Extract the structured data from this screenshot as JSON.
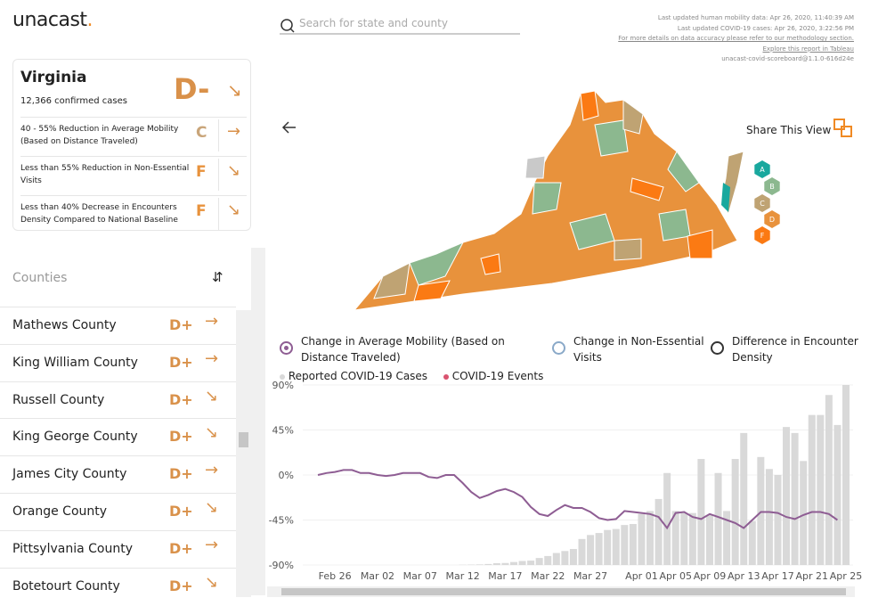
{
  "header": {
    "logo": "unacast",
    "logo_dot": ".",
    "search_placeholder": "Search for state and county",
    "update_lines": [
      "Last updated human mobility data: Apr 26, 2020, 11:40:39 AM",
      "Last updated COVID-19 cases: Apr 26, 2020, 3:22:56 PM",
      "For more details on data accuracy please refer to our methodology section.",
      "Explore this report in Tableau",
      "unacast-covid-scoreboard@1.1.0-616d24e"
    ]
  },
  "state_card": {
    "name": "Virginia",
    "cases": "12,366 confirmed cases",
    "grade": "D-",
    "trend": "↘",
    "metrics": [
      {
        "text": "40 - 55% Reduction in Average Mobility (Based on Distance Traveled)",
        "grade": "C",
        "trend": "→"
      },
      {
        "text": "Less than 55% Reduction in Non-Essential Visits",
        "grade": "F",
        "trend": "↘"
      },
      {
        "text": "Less than 40% Decrease in Encounters Density Compared to National Baseline",
        "grade": "F",
        "trend": "↘"
      }
    ]
  },
  "counties": {
    "title": "Counties",
    "items": [
      {
        "name": "Mathews County",
        "grade": "D+",
        "trend": "→"
      },
      {
        "name": "King William County",
        "grade": "D+",
        "trend": "→"
      },
      {
        "name": "Russell County",
        "grade": "D+",
        "trend": "↘"
      },
      {
        "name": "King George County",
        "grade": "D+",
        "trend": "↘"
      },
      {
        "name": "James City County",
        "grade": "D+",
        "trend": "→"
      },
      {
        "name": "Orange County",
        "grade": "D+",
        "trend": "↘"
      },
      {
        "name": "Pittsylvania County",
        "grade": "D+",
        "trend": "→"
      },
      {
        "name": "Botetourt County",
        "grade": "D+",
        "trend": "↘"
      }
    ]
  },
  "map": {
    "share": "Share This View",
    "grades": [
      {
        "label": "A",
        "color": "#19a89e"
      },
      {
        "label": "B",
        "color": "#8cb88f"
      },
      {
        "label": "C",
        "color": "#bfa373"
      },
      {
        "label": "D",
        "color": "#e8923c"
      },
      {
        "label": "F",
        "color": "#fb7a13"
      }
    ]
  },
  "metric_options": [
    {
      "label": "Change in Average Mobility (Based on Distance Traveled)",
      "selected": true
    },
    {
      "label": "Change in Non-Essential Visits",
      "selected": false
    },
    {
      "label": "Difference in Encounter Density",
      "selected": false
    }
  ],
  "chart_data": {
    "type": "bar-line",
    "categories": [
      null,
      null,
      "Feb 26",
      null,
      null,
      null,
      null,
      "Mar 02",
      null,
      null,
      null,
      null,
      "Mar 07",
      null,
      null,
      null,
      null,
      "Mar 12",
      null,
      null,
      null,
      null,
      "Mar 17",
      null,
      null,
      null,
      null,
      "Mar 22",
      null,
      null,
      null,
      null,
      "Mar 27",
      null,
      null,
      null,
      null,
      null,
      "Apr 01",
      null,
      null,
      null,
      "Apr 05",
      null,
      null,
      null,
      "Apr 09",
      null,
      null,
      null,
      "Apr 13",
      null,
      null,
      null,
      "Apr 17",
      null,
      null,
      null,
      "Apr 21",
      null,
      null,
      null,
      "Apr 25"
    ],
    "series": [
      {
        "name": "Reported COVID-19 Cases",
        "color": "#d9d9d9",
        "axis": "y2",
        "values": [
          0,
          0,
          0,
          0,
          0,
          0,
          0,
          0,
          0,
          0,
          0,
          0,
          0,
          0,
          0,
          0,
          0,
          1,
          2,
          3,
          5,
          9,
          10,
          15,
          20,
          22,
          35,
          45,
          60,
          70,
          80,
          130,
          150,
          160,
          175,
          180,
          200,
          205,
          255,
          270,
          330,
          460,
          270,
          260,
          260,
          530,
          250,
          460,
          270,
          530,
          660,
          220,
          540,
          480,
          450,
          690,
          660,
          520,
          750,
          750,
          850,
          700,
          900
        ]
      },
      {
        "name": "Change in Average Mobility (Based on Distance Traveled)",
        "color": "#8e5d93",
        "values": [
          0,
          2,
          3,
          5,
          5,
          2,
          2,
          0,
          -1,
          0,
          2,
          2,
          2,
          -2,
          -3,
          0,
          0,
          -8,
          -17,
          -23,
          -20,
          -16,
          -14,
          -17,
          -22,
          -32,
          -39,
          -41,
          -35,
          -30,
          -33,
          -33,
          -37,
          -43,
          -45,
          -44,
          -36,
          -37,
          -38,
          -39,
          -42,
          -53,
          -38,
          -37,
          -42,
          -44,
          -39,
          -42,
          -45,
          -48,
          -53,
          -45,
          -37,
          -37,
          -38,
          -42,
          -44,
          -40,
          -37,
          -37,
          -39,
          -45,
          null
        ]
      }
    ],
    "events_legend": {
      "name": "COVID-19 Events",
      "color": "#d9536f"
    },
    "ylim": [
      -90,
      90
    ],
    "yticks": [
      {
        "value": 90,
        "label": "90%"
      },
      {
        "value": 45,
        "label": "45%"
      },
      {
        "value": 0,
        "label": "0%"
      },
      {
        "value": -45,
        "label": "-45%"
      },
      {
        "value": -90,
        "label": "-90%"
      }
    ],
    "y2lim": [
      0,
      900
    ],
    "grid": true
  }
}
